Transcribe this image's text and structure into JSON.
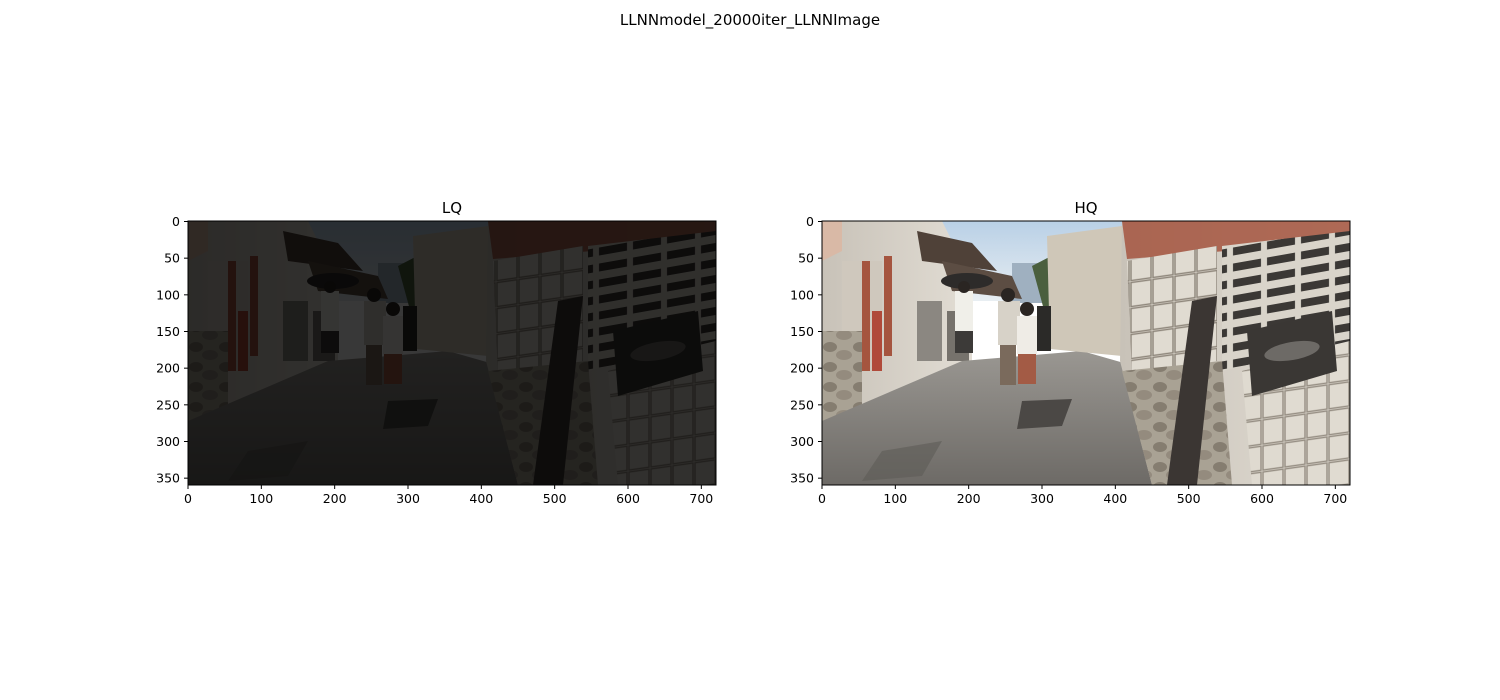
{
  "figure": {
    "suptitle": "LLNNmodel_20000iter_LLNNImage"
  },
  "panels": [
    {
      "title": "LQ",
      "brightness": "dark",
      "x_ticks": [
        "0",
        "100",
        "200",
        "300",
        "400",
        "500",
        "600",
        "700"
      ],
      "y_ticks": [
        "0",
        "50",
        "100",
        "150",
        "200",
        "250",
        "300",
        "350"
      ]
    },
    {
      "title": "HQ",
      "brightness": "bright",
      "x_ticks": [
        "0",
        "100",
        "200",
        "300",
        "400",
        "500",
        "600",
        "700"
      ],
      "y_ticks": [
        "0",
        "50",
        "100",
        "150",
        "200",
        "250",
        "300",
        "350"
      ]
    }
  ],
  "colors": {
    "sky": "#c9dbe8",
    "road": "#8a8784",
    "wall": "#d8d4cc",
    "roof": "#5a4a40",
    "brick_red": "#a5553f",
    "foliage": "#3e5a36"
  }
}
